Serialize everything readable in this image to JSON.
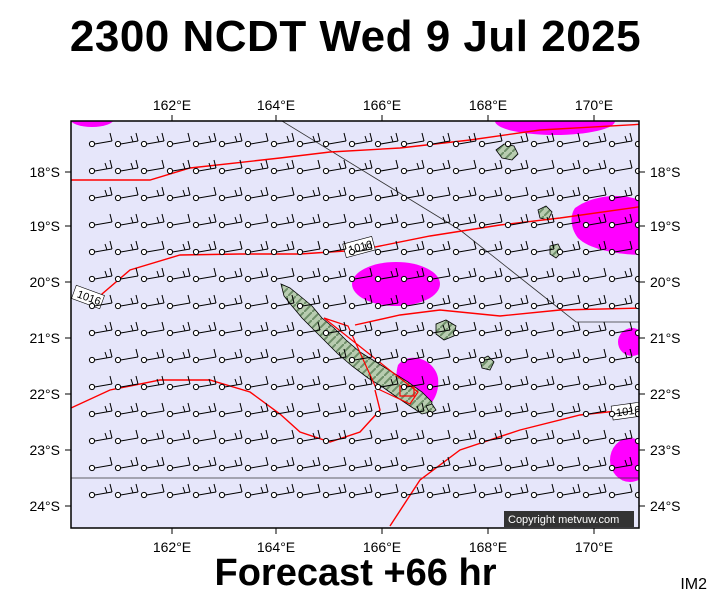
{
  "title": "2300 NCDT Wed 9 Jul 2025",
  "footer": "Forecast +66 hr",
  "image_code": "IM2",
  "copyright": "Copyright metvuw.com",
  "lon_labels": [
    "162°E",
    "164°E",
    "166°E",
    "168°E",
    "170°E"
  ],
  "lat_labels": [
    "18°S",
    "19°S",
    "20°S",
    "21°S",
    "22°S",
    "23°S",
    "24°S"
  ],
  "isobar_labels": [
    "1016",
    "1016",
    "1016"
  ],
  "colors": {
    "ocean": "#e6e6fa",
    "land": "#9fb89a",
    "isobar": "#ff0000",
    "rain": "#ff00ff",
    "border": "#000000"
  }
}
